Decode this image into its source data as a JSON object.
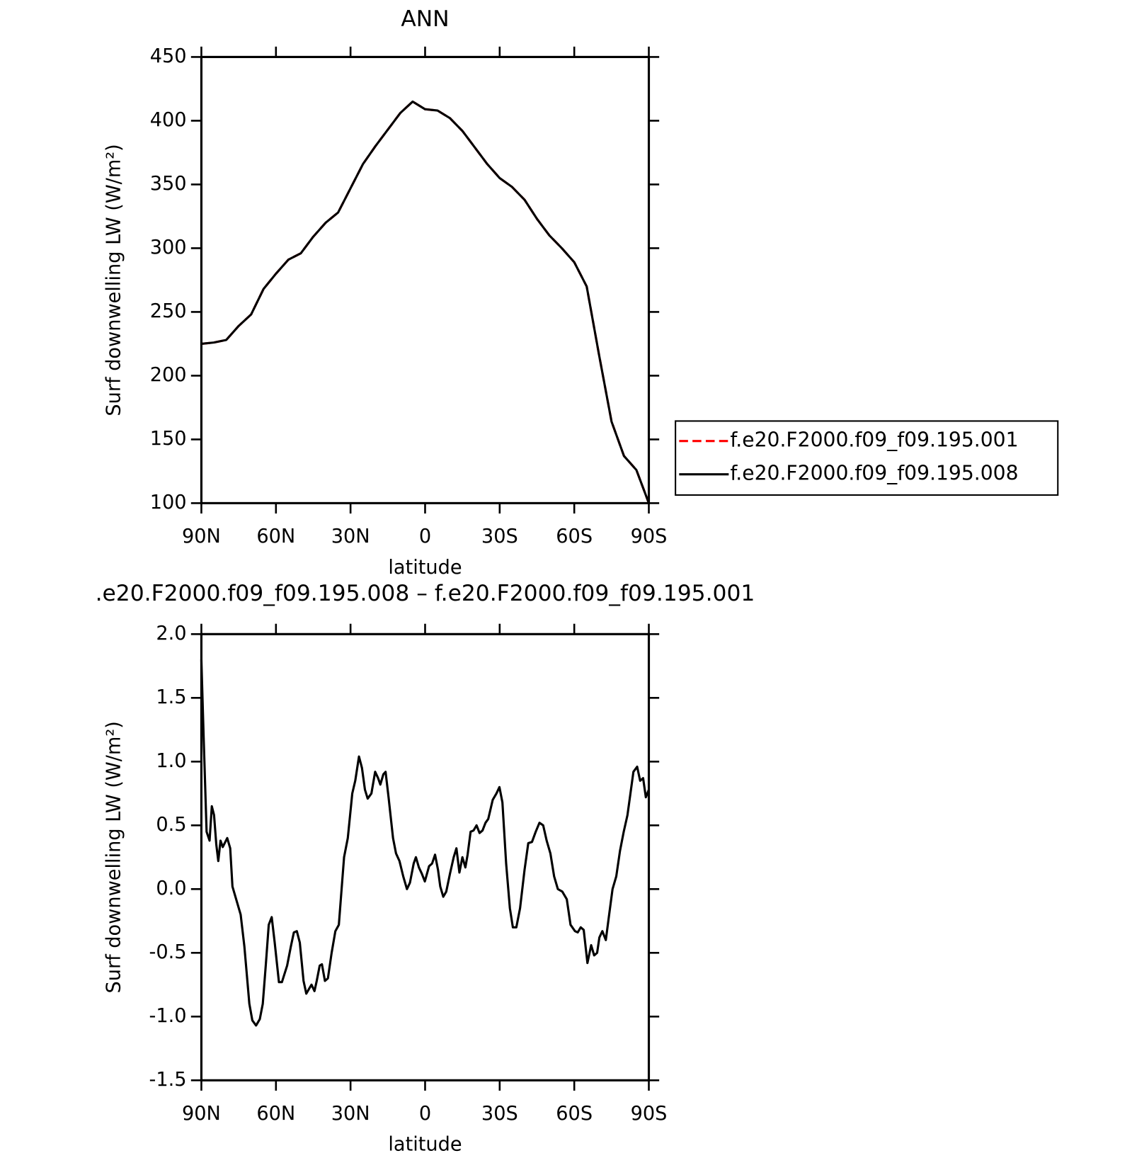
{
  "chart_data": [
    {
      "type": "line",
      "title": "ANN",
      "x_label": "latitude",
      "y_label": "Surf downwelling LW (W/m²)",
      "x": [
        90,
        85,
        80,
        75,
        70,
        65,
        60,
        55,
        50,
        45,
        40,
        35,
        30,
        25,
        20,
        15,
        10,
        5,
        0,
        -5,
        -10,
        -15,
        -20,
        -25,
        -30,
        -35,
        -40,
        -45,
        -50,
        -55,
        -60,
        -65,
        -70,
        -75,
        -80,
        -85,
        -90
      ],
      "series": [
        {
          "name": "f.e20.F2000.f09_f09.195.001",
          "color": "#ff0000",
          "line_style": "dashed",
          "values": [
            225,
            226,
            228,
            239,
            248,
            268,
            280,
            291,
            296,
            309,
            320,
            328,
            347,
            366,
            380,
            393,
            406,
            415,
            409,
            408,
            402,
            392,
            379,
            366,
            355,
            348,
            338,
            323,
            310,
            300,
            289,
            270,
            216,
            164,
            137,
            126,
            100
          ]
        },
        {
          "name": "f.e20.F2000.f09_f09.195.008",
          "color": "#000000",
          "line_style": "solid",
          "values": [
            225,
            226,
            228,
            239,
            248,
            268,
            280,
            291,
            296,
            309,
            320,
            328,
            347,
            366,
            380,
            393,
            406,
            415,
            409,
            408,
            402,
            392,
            379,
            366,
            355,
            348,
            338,
            323,
            310,
            300,
            289,
            270,
            216,
            164,
            137,
            126,
            100
          ]
        }
      ],
      "xlim": [
        90,
        -90
      ],
      "xticks": [
        {
          "value": 90,
          "label": "90N"
        },
        {
          "value": 60,
          "label": "60N"
        },
        {
          "value": 30,
          "label": "30N"
        },
        0,
        {
          "value": -30,
          "label": "30S"
        },
        {
          "value": -60,
          "label": "60S"
        },
        {
          "value": -90,
          "label": "90S"
        }
      ],
      "ylim": [
        100,
        450
      ],
      "yticks": [
        100,
        150,
        200,
        250,
        300,
        350,
        400,
        450
      ],
      "legend": "right"
    },
    {
      "type": "line",
      "title": ".e20.F2000.f09_f09.195.008 – f.e20.F2000.f09_f09.195.001",
      "x_label": "latitude",
      "y_label": "Surf downwelling LW (W/m²)",
      "x": [
        90,
        89.1,
        87.9,
        86.7,
        85.8,
        84.9,
        84.0,
        83.2,
        82.3,
        81.4,
        79.6,
        78.4,
        77.5,
        74.2,
        72.7,
        70.7,
        69.5,
        68.0,
        66.5,
        65.3,
        64.1,
        62.9,
        61.7,
        60.5,
        58.8,
        57.6,
        55.5,
        54.0,
        52.8,
        51.6,
        50.4,
        48.9,
        47.8,
        46.6,
        45.7,
        44.5,
        43.6,
        42.4,
        41.5,
        40.3,
        39.1,
        37.6,
        36.1,
        34.7,
        32.6,
        31.1,
        29.3,
        28.1,
        26.6,
        25.4,
        24.2,
        23.1,
        21.6,
        20.1,
        18.9,
        18.0,
        16.8,
        15.9,
        14.7,
        12.9,
        11.7,
        10.3,
        8.8,
        7.3,
        6.1,
        4.6,
        3.7,
        2.5,
        1.3,
        0.1,
        -1.6,
        -2.8,
        -4.0,
        -5.2,
        -6.1,
        -7.3,
        -8.5,
        -10.0,
        -11.5,
        -12.6,
        -13.8,
        -15.0,
        -16.2,
        -17.1,
        -18.3,
        -19.5,
        -20.7,
        -21.9,
        -23.1,
        -24.3,
        -25.4,
        -27.2,
        -28.7,
        -29.9,
        -31.1,
        -32.6,
        -34.1,
        -35.3,
        -36.7,
        -38.2,
        -40.0,
        -41.5,
        -43.0,
        -44.5,
        -46.0,
        -47.5,
        -48.9,
        -50.4,
        -51.9,
        -53.4,
        -55.2,
        -57.0,
        -58.5,
        -60.3,
        -61.4,
        -62.6,
        -63.8,
        -65.3,
        -66.8,
        -68.0,
        -69.2,
        -70.1,
        -71.3,
        -72.7,
        -73.9,
        -75.4,
        -76.9,
        -78.4,
        -79.9,
        -81.4,
        -82.6,
        -83.8,
        -85.3,
        -86.5,
        -87.7,
        -88.8,
        -90
      ],
      "series": [
        {
          "color": "#000000",
          "line_style": "solid",
          "values": [
            1.8,
            1.2,
            0.45,
            0.38,
            0.65,
            0.58,
            0.35,
            0.22,
            0.38,
            0.33,
            0.4,
            0.32,
            0.02,
            -0.2,
            -0.45,
            -0.9,
            -1.03,
            -1.07,
            -1.02,
            -0.9,
            -0.6,
            -0.28,
            -0.22,
            -0.42,
            -0.73,
            -0.73,
            -0.6,
            -0.45,
            -0.34,
            -0.33,
            -0.42,
            -0.72,
            -0.82,
            -0.78,
            -0.75,
            -0.8,
            -0.72,
            -0.6,
            -0.59,
            -0.72,
            -0.7,
            -0.5,
            -0.33,
            -0.28,
            0.25,
            0.4,
            0.75,
            0.85,
            1.04,
            0.95,
            0.78,
            0.71,
            0.75,
            0.92,
            0.87,
            0.82,
            0.9,
            0.92,
            0.72,
            0.4,
            0.28,
            0.22,
            0.1,
            0.0,
            0.05,
            0.2,
            0.25,
            0.17,
            0.12,
            0.06,
            0.18,
            0.2,
            0.27,
            0.15,
            0.02,
            -0.06,
            -0.02,
            0.12,
            0.25,
            0.32,
            0.13,
            0.25,
            0.17,
            0.27,
            0.45,
            0.46,
            0.5,
            0.44,
            0.46,
            0.52,
            0.55,
            0.7,
            0.75,
            0.8,
            0.68,
            0.2,
            -0.15,
            -0.3,
            -0.3,
            -0.15,
            0.15,
            0.36,
            0.37,
            0.45,
            0.52,
            0.5,
            0.38,
            0.28,
            0.1,
            0.0,
            -0.02,
            -0.08,
            -0.28,
            -0.33,
            -0.34,
            -0.3,
            -0.32,
            -0.58,
            -0.44,
            -0.52,
            -0.5,
            -0.38,
            -0.33,
            -0.4,
            -0.22,
            0.0,
            0.1,
            0.3,
            0.45,
            0.58,
            0.75,
            0.92,
            0.96,
            0.85,
            0.87,
            0.72,
            0.78
          ]
        }
      ],
      "xlim": [
        90,
        -90
      ],
      "xticks": [
        {
          "value": 90,
          "label": "90N"
        },
        {
          "value": 60,
          "label": "60N"
        },
        {
          "value": 30,
          "label": "30N"
        },
        0,
        {
          "value": -30,
          "label": "30S"
        },
        {
          "value": -60,
          "label": "60S"
        },
        {
          "value": -90,
          "label": "90S"
        }
      ],
      "ylim": [
        -1.5,
        2.0
      ],
      "yticks": [
        -1.5,
        {
          "value": -1,
          "label": "-1.0"
        },
        -0.5,
        {
          "value": 0,
          "label": "0.0"
        },
        0.5,
        {
          "value": 1,
          "label": "1.0"
        },
        1.5,
        {
          "value": 2,
          "label": "2.0"
        }
      ]
    }
  ]
}
